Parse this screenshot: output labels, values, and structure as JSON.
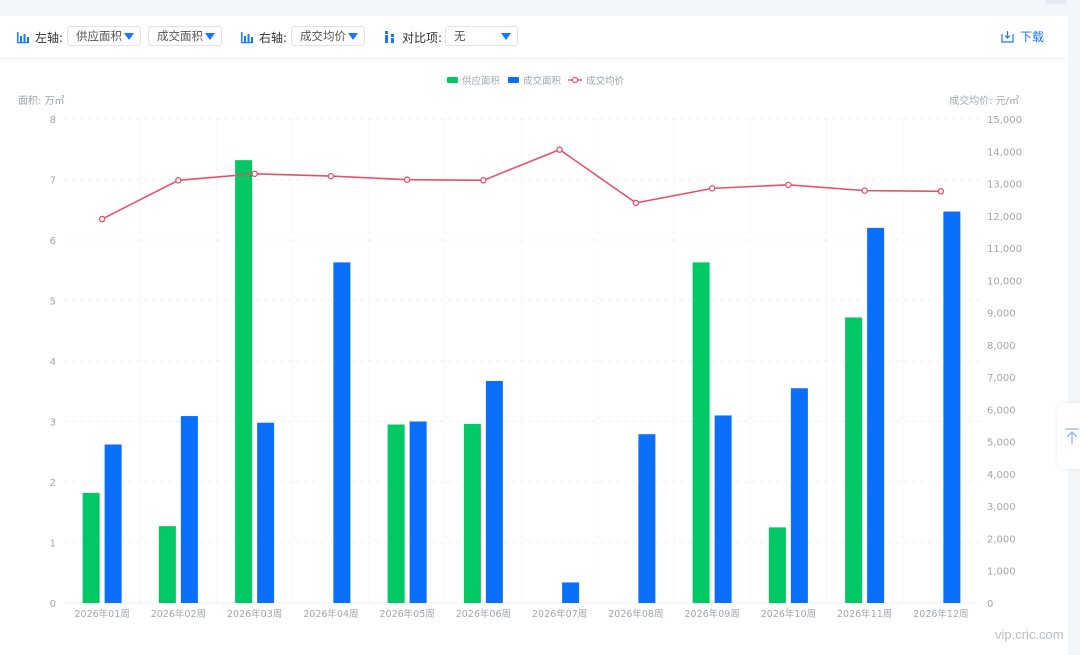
{
  "toolbar": {
    "left_axis_label": "左轴:",
    "left_select_1": "供应面积",
    "left_select_2": "成交面积",
    "right_axis_label": "右轴:",
    "right_select": "成交均价",
    "compare_label": "对比项:",
    "compare_select": "无",
    "download_label": "下载"
  },
  "watermark": "vip.cric.com",
  "colors": {
    "supply": "#00c864",
    "deal": "#0a6ffb",
    "price": "#e8506a",
    "accent": "#1677ff"
  },
  "chart_data": {
    "type": "bar",
    "categories": [
      "2026年01周",
      "2026年02周",
      "2026年03周",
      "2026年04周",
      "2026年05周",
      "2026年06周",
      "2026年07周",
      "2026年08周",
      "2026年09周",
      "2026年10周",
      "2026年11周",
      "2026年12周"
    ],
    "series": [
      {
        "name": "供应面积",
        "type": "bar",
        "axis": "left",
        "values": [
          1.82,
          1.27,
          7.32,
          null,
          2.95,
          2.96,
          null,
          null,
          5.63,
          1.25,
          4.72,
          null
        ]
      },
      {
        "name": "成交面积",
        "type": "bar",
        "axis": "left",
        "values": [
          2.62,
          3.09,
          2.98,
          5.63,
          3.0,
          3.67,
          0.34,
          2.79,
          3.1,
          3.55,
          6.2,
          6.47
        ]
      },
      {
        "name": "成交均价",
        "type": "line",
        "axis": "right",
        "values": [
          11900,
          13100,
          13300,
          13230,
          13120,
          13100,
          14050,
          12400,
          12850,
          12960,
          12780,
          12760
        ]
      }
    ],
    "ylabel_left": "面积: 万㎡",
    "ylabel_right": "成交均价: 元/㎡",
    "ylim_left": [
      0,
      8
    ],
    "ylim_right": [
      0,
      15000
    ],
    "yticks_left": [
      "0",
      "1",
      "2",
      "3",
      "4",
      "5",
      "6",
      "7",
      "8"
    ],
    "yticks_right": [
      "0",
      "1,000",
      "2,000",
      "3,000",
      "4,000",
      "5,000",
      "6,000",
      "7,000",
      "8,000",
      "9,000",
      "10,000",
      "11,000",
      "12,000",
      "13,000",
      "14,000",
      "15,000"
    ],
    "legend": [
      "供应面积",
      "成交面积",
      "成交均价"
    ],
    "legend_position": "top-center",
    "grid": true
  }
}
